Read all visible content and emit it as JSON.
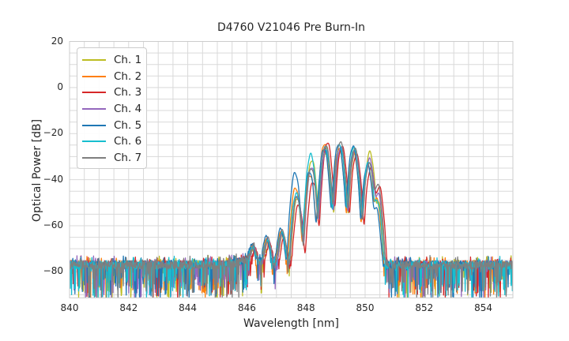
{
  "title": "D4760 V21046 Pre Burn-In",
  "chart_data": {
    "type": "line",
    "title": "D4760 V21046 Pre Burn-In",
    "xlabel": "Wavelength [nm]",
    "ylabel": "Optical Power [dB]",
    "xlim": [
      840,
      855
    ],
    "ylim": [
      -91.3,
      20
    ],
    "grid": {
      "on": true,
      "x_step_nm": 0.5,
      "y_step_db": 5
    },
    "legend_position": "upper left",
    "x_ticks": [
      {
        "v": 840,
        "label": "840"
      },
      {
        "v": 842,
        "label": "842"
      },
      {
        "v": 844,
        "label": "844"
      },
      {
        "v": 846,
        "label": "846"
      },
      {
        "v": 848,
        "label": "848"
      },
      {
        "v": 850,
        "label": "850"
      },
      {
        "v": 852,
        "label": "852"
      },
      {
        "v": 854,
        "label": "854"
      }
    ],
    "y_ticks": [
      {
        "v": 20,
        "label": "20"
      },
      {
        "v": 0,
        "label": "0"
      },
      {
        "v": -20,
        "label": "−20"
      },
      {
        "v": -40,
        "label": "−40"
      },
      {
        "v": -60,
        "label": "−60"
      },
      {
        "v": -80,
        "label": "−80"
      }
    ],
    "noise_floor": {
      "mean_db": -77,
      "spread_db": 3.6,
      "spike_down_db": 13,
      "rise_near_nm": 846.1
    },
    "mode_spacing_nm": 0.49,
    "valley_depth_db": 30,
    "modes": [
      {
        "wl": 846.22,
        "peaks_db": [
          -71,
          -70,
          -72,
          -70.5,
          -69,
          -70,
          -69.5
        ]
      },
      {
        "wl": 846.71,
        "peaks_db": [
          -67,
          -66.5,
          -68,
          -66,
          -65,
          -66.5,
          -65.5
        ]
      },
      {
        "wl": 847.2,
        "peaks_db": [
          -64,
          -63,
          -66,
          -63.5,
          -61.5,
          -63,
          -62
        ]
      },
      {
        "wl": 847.69,
        "peaks_db": [
          -48,
          -43.5,
          -51,
          -47,
          -37,
          -46,
          -47.5
        ]
      },
      {
        "wl": 848.18,
        "peaks_db": [
          -31.5,
          -38,
          -41,
          -34.5,
          -36.5,
          -29,
          -35
        ]
      },
      {
        "wl": 848.67,
        "peaks_db": [
          -27.5,
          -24.5,
          -23.8,
          -27,
          -26.5,
          -26,
          -25
        ]
      },
      {
        "wl": 849.16,
        "peaks_db": [
          -27,
          -26.5,
          -25.5,
          -26,
          -24.5,
          -25,
          -23.5
        ]
      },
      {
        "wl": 849.65,
        "peaks_db": [
          -27.5,
          -28,
          -29,
          -27,
          -25.5,
          -26,
          -26.5
        ]
      },
      {
        "wl": 850.14,
        "peaks_db": [
          -28,
          -34,
          -35,
          -31,
          -33.5,
          -32,
          -33
        ]
      },
      {
        "wl": 850.42,
        "peaks_db": [
          -50,
          -48,
          -43,
          -46,
          -52,
          -49,
          -42
        ]
      }
    ],
    "series": [
      {
        "name": "Ch. 1",
        "color": "#bcbd22",
        "wl_offset_nm": 0.02
      },
      {
        "name": "Ch. 2",
        "color": "#ff7f0e",
        "wl_offset_nm": -0.045
      },
      {
        "name": "Ch. 3",
        "color": "#d62728",
        "wl_offset_nm": 0.055
      },
      {
        "name": "Ch. 4",
        "color": "#9467bd",
        "wl_offset_nm": 0.012
      },
      {
        "name": "Ch. 5",
        "color": "#1f77b4",
        "wl_offset_nm": -0.06
      },
      {
        "name": "Ch. 6",
        "color": "#17becf",
        "wl_offset_nm": -0.02
      },
      {
        "name": "Ch. 7",
        "color": "#7f7f7f",
        "wl_offset_nm": 0.0
      }
    ],
    "colors": {
      "grid": "#d9d9d9",
      "frame": "#cccccc",
      "text": "#262626",
      "background": "#ffffff"
    }
  }
}
